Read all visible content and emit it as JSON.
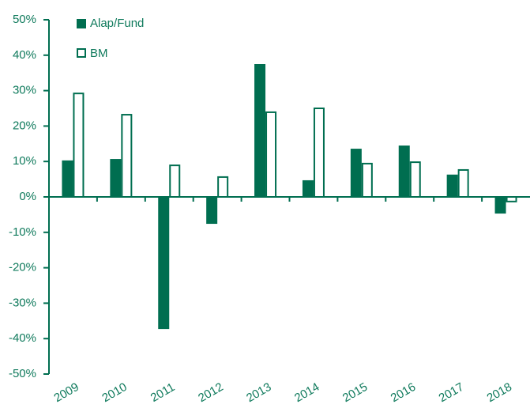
{
  "chart_data": {
    "type": "bar",
    "categories": [
      "2009",
      "2010",
      "2011",
      "2012",
      "2013",
      "2014",
      "2015",
      "2016",
      "2017",
      "2018"
    ],
    "series": [
      {
        "name": "Alap/Fund",
        "color": "#006e50",
        "fill": "solid",
        "values": [
          10.3,
          10.7,
          -37.3,
          -7.6,
          37.5,
          4.7,
          13.6,
          14.5,
          6.3,
          -4.7
        ]
      },
      {
        "name": "BM",
        "color": "#006e50",
        "fill": "outline",
        "values": [
          29.2,
          23.2,
          8.9,
          5.6,
          23.9,
          25.0,
          9.4,
          9.8,
          7.6,
          -1.3
        ]
      }
    ],
    "ylim": [
      -50,
      50
    ],
    "yticks": [
      {
        "value": -50,
        "label": "-50%"
      },
      {
        "value": -40,
        "label": "-40%"
      },
      {
        "value": -30,
        "label": "-30%"
      },
      {
        "value": -20,
        "label": "-20%"
      },
      {
        "value": -10,
        "label": "-10%"
      },
      {
        "value": 0,
        "label": "0%"
      },
      {
        "value": 10,
        "label": "10%"
      },
      {
        "value": 20,
        "label": "20%"
      },
      {
        "value": 30,
        "label": "30%"
      },
      {
        "value": 40,
        "label": "40%"
      },
      {
        "value": 50,
        "label": "50%"
      }
    ],
    "legend": "top-left"
  }
}
